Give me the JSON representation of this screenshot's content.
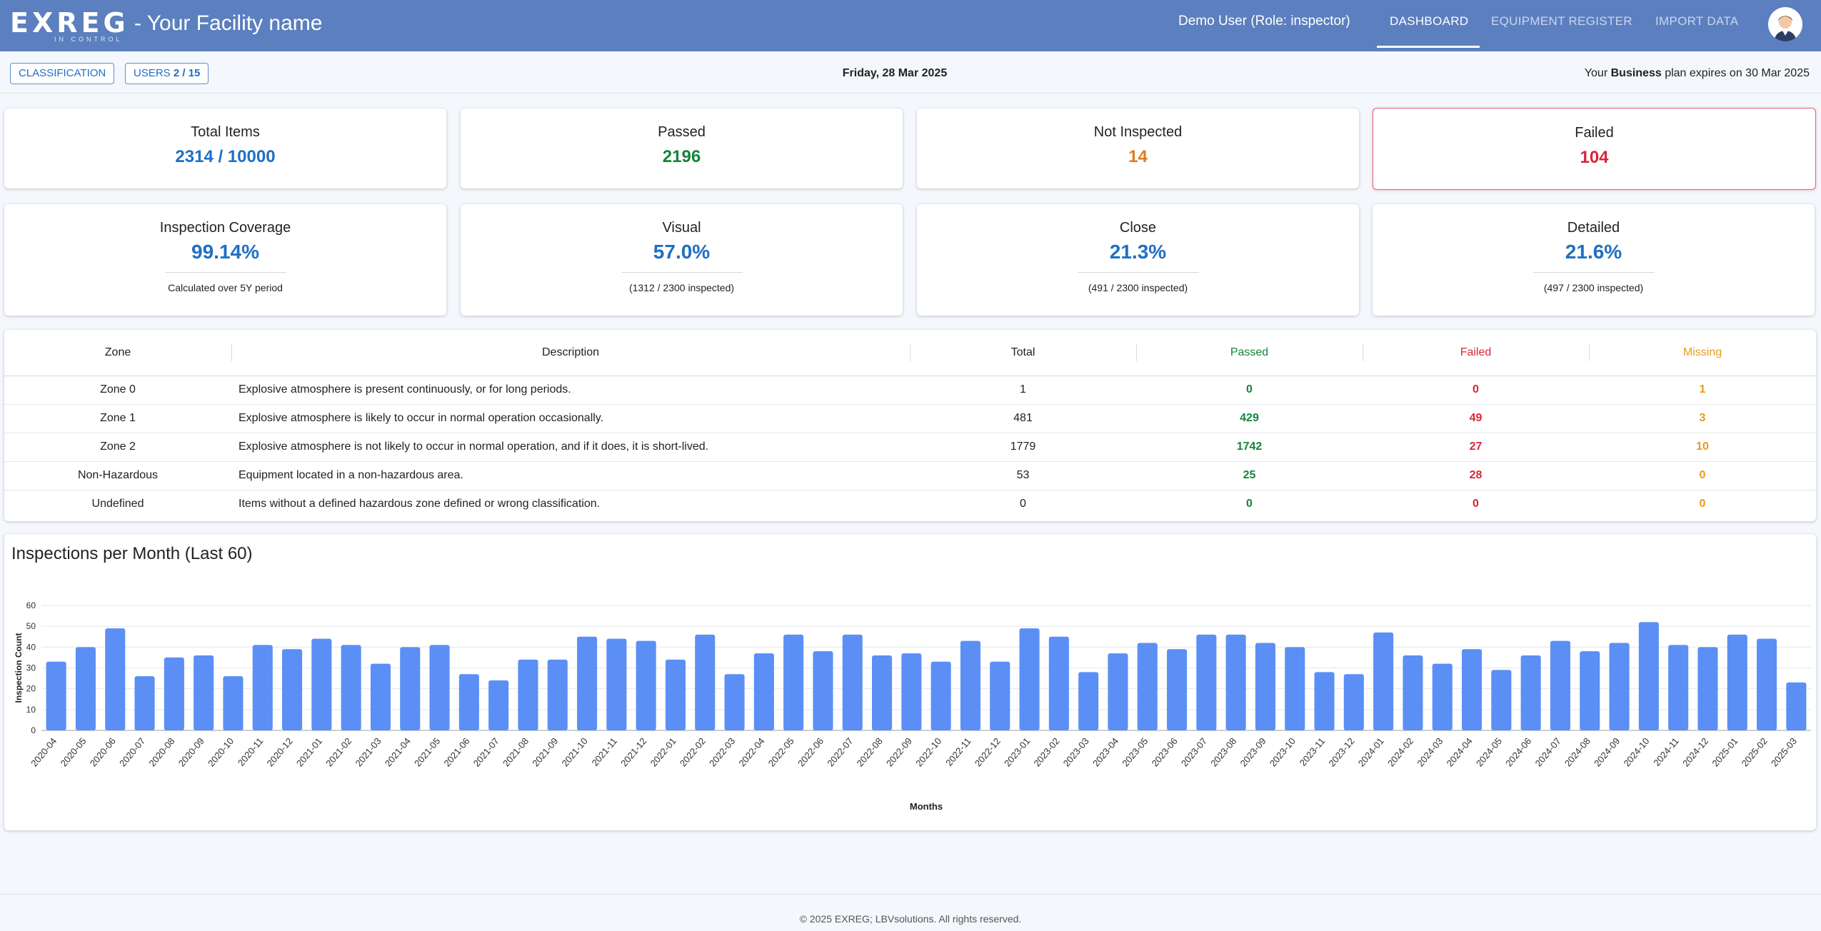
{
  "header": {
    "logo_text": "EXREG",
    "logo_subtext": "IN CONTROL",
    "facility_title": "- Your Facility name",
    "user_label": "Demo User (Role: inspector)",
    "nav": [
      {
        "label": "DASHBOARD",
        "active": true
      },
      {
        "label": "EQUIPMENT REGISTER",
        "active": false
      },
      {
        "label": "IMPORT DATA",
        "active": false
      }
    ],
    "avatar_icon": "user-avatar-icon"
  },
  "subbar": {
    "classification_label": "CLASSIFICATION",
    "users_label": "USERS",
    "users_count": "2 / 15",
    "date": "Friday, 28 Mar 2025",
    "plan_prefix": "Your",
    "plan_name": "Business",
    "plan_suffix": "plan expires on 30 Mar 2025"
  },
  "summary": [
    {
      "title": "Total Items",
      "value": "2314 / 10000",
      "color": "#1f6fc4"
    },
    {
      "title": "Passed",
      "value": "2196",
      "color": "#14853a"
    },
    {
      "title": "Not Inspected",
      "value": "14",
      "color": "#e07a22"
    },
    {
      "title": "Failed",
      "value": "104",
      "color": "#d72638"
    }
  ],
  "coverage": [
    {
      "title": "Inspection Coverage",
      "value": "99.14%",
      "note": "Calculated over 5Y period"
    },
    {
      "title": "Visual",
      "value": "57.0%",
      "note": "(1312 / 2300 inspected)"
    },
    {
      "title": "Close",
      "value": "21.3%",
      "note": "(491 / 2300 inspected)"
    },
    {
      "title": "Detailed",
      "value": "21.6%",
      "note": "(497 / 2300 inspected)"
    }
  ],
  "zone_table": {
    "headers": {
      "zone": "Zone",
      "description": "Description",
      "total": "Total",
      "passed": "Passed",
      "failed": "Failed",
      "missing": "Missing"
    },
    "rows": [
      {
        "zone": "Zone 0",
        "description": "Explosive atmosphere is present continuously, or for long periods.",
        "total": "1",
        "passed": "0",
        "failed": "0",
        "missing": "1"
      },
      {
        "zone": "Zone 1",
        "description": "Explosive atmosphere is likely to occur in normal operation occasionally.",
        "total": "481",
        "passed": "429",
        "failed": "49",
        "missing": "3"
      },
      {
        "zone": "Zone 2",
        "description": "Explosive atmosphere is not likely to occur in normal operation, and if it does, it is short-lived.",
        "total": "1779",
        "passed": "1742",
        "failed": "27",
        "missing": "10"
      },
      {
        "zone": "Non-Hazardous",
        "description": "Equipment located in a non-hazardous area.",
        "total": "53",
        "passed": "25",
        "failed": "28",
        "missing": "0"
      },
      {
        "zone": "Undefined",
        "description": "Items without a defined hazardous zone defined or wrong classification.",
        "total": "0",
        "passed": "0",
        "failed": "0",
        "missing": "0"
      }
    ]
  },
  "chart_data": {
    "type": "bar",
    "title": "Inspections per Month (Last 60)",
    "xlabel": "Months",
    "ylabel": "Inspection Count",
    "ylim": [
      0,
      60
    ],
    "yticks": [
      0,
      10,
      20,
      30,
      40,
      50,
      60
    ],
    "grid": true,
    "bar_color": "#5b8ff5",
    "categories": [
      "2020-04",
      "2020-05",
      "2020-06",
      "2020-07",
      "2020-08",
      "2020-09",
      "2020-10",
      "2020-11",
      "2020-12",
      "2021-01",
      "2021-02",
      "2021-03",
      "2021-04",
      "2021-05",
      "2021-06",
      "2021-07",
      "2021-08",
      "2021-09",
      "2021-10",
      "2021-11",
      "2021-12",
      "2022-01",
      "2022-02",
      "2022-03",
      "2022-04",
      "2022-05",
      "2022-06",
      "2022-07",
      "2022-08",
      "2022-09",
      "2022-10",
      "2022-11",
      "2022-12",
      "2023-01",
      "2023-02",
      "2023-03",
      "2023-04",
      "2023-05",
      "2023-06",
      "2023-07",
      "2023-08",
      "2023-09",
      "2023-10",
      "2023-11",
      "2023-12",
      "2024-01",
      "2024-02",
      "2024-03",
      "2024-04",
      "2024-05",
      "2024-06",
      "2024-07",
      "2024-08",
      "2024-09",
      "2024-10",
      "2024-11",
      "2024-12",
      "2025-01",
      "2025-02",
      "2025-03"
    ],
    "values": [
      33,
      40,
      49,
      26,
      35,
      36,
      26,
      41,
      39,
      44,
      41,
      32,
      40,
      41,
      27,
      24,
      34,
      34,
      45,
      44,
      43,
      34,
      46,
      27,
      37,
      46,
      38,
      46,
      36,
      37,
      33,
      43,
      33,
      49,
      45,
      28,
      37,
      42,
      39,
      46,
      46,
      42,
      40,
      28,
      27,
      47,
      36,
      32,
      39,
      29,
      36,
      43,
      38,
      42,
      52,
      41,
      40,
      46,
      44,
      23
    ]
  },
  "footer": {
    "text": "© 2025 EXREG; LBVsolutions. All rights reserved."
  }
}
